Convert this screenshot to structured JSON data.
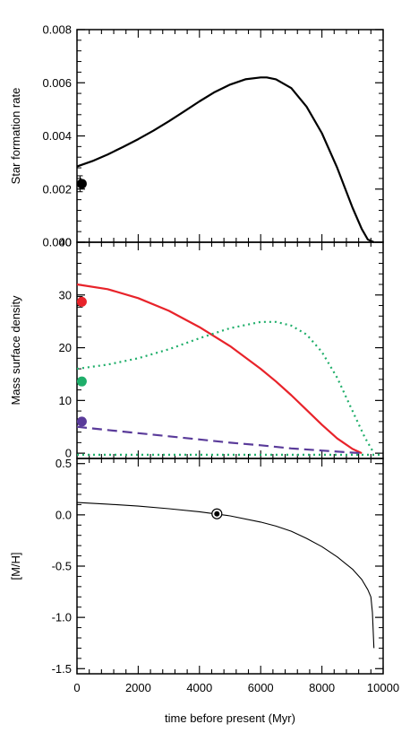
{
  "chart_data": [
    {
      "type": "line",
      "panel": "top",
      "ylabel": "Star formation rate",
      "ylim": [
        0,
        0.008
      ],
      "xlim": [
        0,
        10000
      ],
      "y_ticks": [
        "0.000",
        "0.002",
        "0.004",
        "0.006",
        "0.008"
      ],
      "y_tick_values": [
        0,
        0.002,
        0.004,
        0.006,
        0.008
      ],
      "series": [
        {
          "color": "#000000",
          "style": "solid",
          "x": [
            0,
            500,
            1000,
            1500,
            2000,
            2500,
            3000,
            3500,
            4000,
            4500,
            5000,
            5500,
            6000,
            6200,
            6500,
            7000,
            7500,
            8000,
            8500,
            9000,
            9300,
            9500,
            9700
          ],
          "y": [
            0.00285,
            0.00305,
            0.0033,
            0.00358,
            0.00388,
            0.0042,
            0.00455,
            0.00492,
            0.0053,
            0.00565,
            0.00593,
            0.00613,
            0.0062,
            0.0062,
            0.00613,
            0.0058,
            0.0051,
            0.0041,
            0.0028,
            0.0013,
            0.0005,
            0.0001,
            0.0
          ]
        }
      ],
      "observed_points": [
        {
          "x": 100,
          "y": 0.0022,
          "color": "#000000",
          "err": 0.0003
        }
      ]
    },
    {
      "type": "line",
      "panel": "middle",
      "ylabel": "Mass surface density",
      "ylim": [
        -1,
        40
      ],
      "xlim": [
        0,
        10000
      ],
      "y_ticks": [
        "0",
        "10",
        "20",
        "30",
        "40"
      ],
      "y_tick_values": [
        0,
        10,
        20,
        30,
        40
      ],
      "series": [
        {
          "color": "#e8232a",
          "style": "solid",
          "x": [
            0,
            1000,
            2000,
            3000,
            4000,
            5000,
            6000,
            6500,
            7000,
            7500,
            8000,
            8500,
            9000,
            9300
          ],
          "y": [
            32,
            31.1,
            29.4,
            27,
            23.9,
            20.3,
            16,
            13.6,
            11,
            8.2,
            5.4,
            2.8,
            0.8,
            0.0
          ]
        },
        {
          "color": "#1fae6a",
          "style": "dotted",
          "x": [
            0,
            1000,
            2000,
            3000,
            4000,
            5000,
            6000,
            6500,
            7000,
            7500,
            8000,
            8500,
            9000,
            9400,
            9700
          ],
          "y": [
            16,
            16.8,
            18,
            19.7,
            21.8,
            23.7,
            24.9,
            24.9,
            24.2,
            22.5,
            19.2,
            14.3,
            8,
            3,
            0
          ]
        },
        {
          "color": "#5a3b9a",
          "style": "dashed",
          "x": [
            0,
            1000,
            2000,
            3000,
            4000,
            5000,
            6000,
            7000,
            8000,
            9000,
            9300
          ],
          "y": [
            5,
            4.4,
            3.8,
            3.2,
            2.6,
            2.0,
            1.5,
            0.9,
            0.5,
            0.1,
            0
          ]
        },
        {
          "color": "#1fae6a",
          "style": "dotted",
          "x": [
            0,
            10000
          ],
          "y": [
            -0.3,
            -0.3
          ]
        }
      ],
      "observed_points": [
        {
          "x": 100,
          "y": 28.7,
          "color": "#e8232a",
          "err": 1.0
        },
        {
          "x": 100,
          "y": 13.6,
          "color": "#1fae6a",
          "err": 0.5
        },
        {
          "x": 100,
          "y": 6.0,
          "color": "#5a3b9a",
          "err": 0.5
        }
      ]
    },
    {
      "type": "line",
      "panel": "bottom",
      "ylabel": "[M/H]",
      "xlabel": "time before present (Myr)",
      "ylim": [
        -1.55,
        0.55
      ],
      "xlim": [
        0,
        10000
      ],
      "y_ticks": [
        "-1.5",
        "-1.0",
        "-0.5",
        "0.0",
        "0.5"
      ],
      "y_tick_values": [
        -1.5,
        -1.0,
        -0.5,
        0.0,
        0.5
      ],
      "x_ticks": [
        "0",
        "2000",
        "4000",
        "6000",
        "8000",
        "10000"
      ],
      "x_tick_values": [
        0,
        2000,
        4000,
        6000,
        8000,
        10000
      ],
      "series": [
        {
          "color": "#000000",
          "style": "solid",
          "x": [
            0,
            1000,
            2000,
            3000,
            4000,
            5000,
            6000,
            6500,
            7000,
            7500,
            8000,
            8500,
            9000,
            9300,
            9500,
            9600,
            9650,
            9700
          ],
          "y": [
            0.12,
            0.105,
            0.085,
            0.06,
            0.03,
            -0.01,
            -0.07,
            -0.11,
            -0.16,
            -0.23,
            -0.31,
            -0.41,
            -0.53,
            -0.63,
            -0.73,
            -0.8,
            -0.95,
            -1.3
          ]
        }
      ],
      "sun_marker": {
        "x": 4570,
        "y": 0.01
      }
    }
  ]
}
